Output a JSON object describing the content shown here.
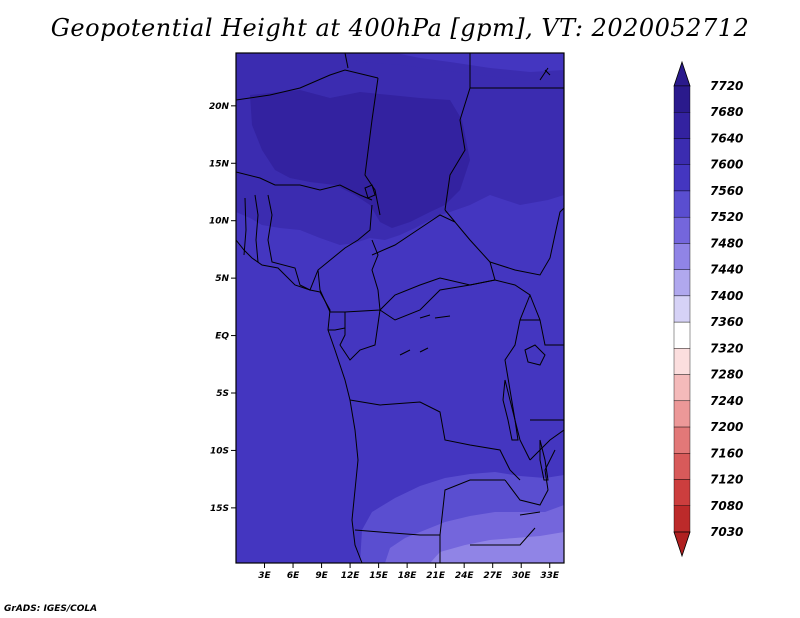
{
  "title": "Geopotential Height at 400hPa [gpm], VT: 2020052712",
  "credit": "GrADS: IGES/COLA",
  "map": {
    "lon_range": [
      0,
      34.5
    ],
    "lat_range": [
      -19.8,
      24.6
    ],
    "lat_ticks": [
      {
        "value": 20,
        "label": "20N"
      },
      {
        "value": 15,
        "label": "15N"
      },
      {
        "value": 10,
        "label": "10N"
      },
      {
        "value": 5,
        "label": "5N"
      },
      {
        "value": 0,
        "label": "EQ"
      },
      {
        "value": -5,
        "label": "5S"
      },
      {
        "value": -10,
        "label": "10S"
      },
      {
        "value": -15,
        "label": "15S"
      }
    ],
    "lon_ticks": [
      {
        "value": 3,
        "label": "3E"
      },
      {
        "value": 6,
        "label": "6E"
      },
      {
        "value": 9,
        "label": "9E"
      },
      {
        "value": 12,
        "label": "12E"
      },
      {
        "value": 15,
        "label": "15E"
      },
      {
        "value": 18,
        "label": "18E"
      },
      {
        "value": 21,
        "label": "21E"
      },
      {
        "value": 24,
        "label": "24E"
      },
      {
        "value": 27,
        "label": "27E"
      },
      {
        "value": 30,
        "label": "30E"
      },
      {
        "value": 33,
        "label": "33E"
      }
    ]
  },
  "colorbar": {
    "levels": [
      {
        "label": "7720",
        "color": "#2a1a8c"
      },
      {
        "label": "7680",
        "color": "#3322a0"
      },
      {
        "label": "7640",
        "color": "#3b2cb0"
      },
      {
        "label": "7600",
        "color": "#4436c0"
      },
      {
        "label": "7560",
        "color": "#5a4ed0"
      },
      {
        "label": "7520",
        "color": "#7466dc"
      },
      {
        "label": "7480",
        "color": "#9084e6"
      },
      {
        "label": "7440",
        "color": "#b0a8ee"
      },
      {
        "label": "7400",
        "color": "#d6d2f6"
      },
      {
        "label": "7360",
        "color": "#ffffff"
      },
      {
        "label": "7320",
        "color": "#fbdede"
      },
      {
        "label": "7280",
        "color": "#f4baba"
      },
      {
        "label": "7240",
        "color": "#ec9898"
      },
      {
        "label": "7200",
        "color": "#e27878"
      },
      {
        "label": "7160",
        "color": "#d85a5a"
      },
      {
        "label": "7120",
        "color": "#cc3e3e"
      },
      {
        "label": "7080",
        "color": "#bc2a2a"
      },
      {
        "label": "7030",
        "color": "#a81c1c"
      }
    ],
    "top_arrow_color": "#2a1a8c",
    "bottom_arrow_color": "#b02020"
  },
  "field_colors": {
    "c7600": "#4436c0",
    "c7640": "#3b2cb0",
    "c7680": "#3322a0",
    "c7560": "#5a4ed0",
    "c7520": "#7466dc",
    "c7480": "#9084e6"
  }
}
